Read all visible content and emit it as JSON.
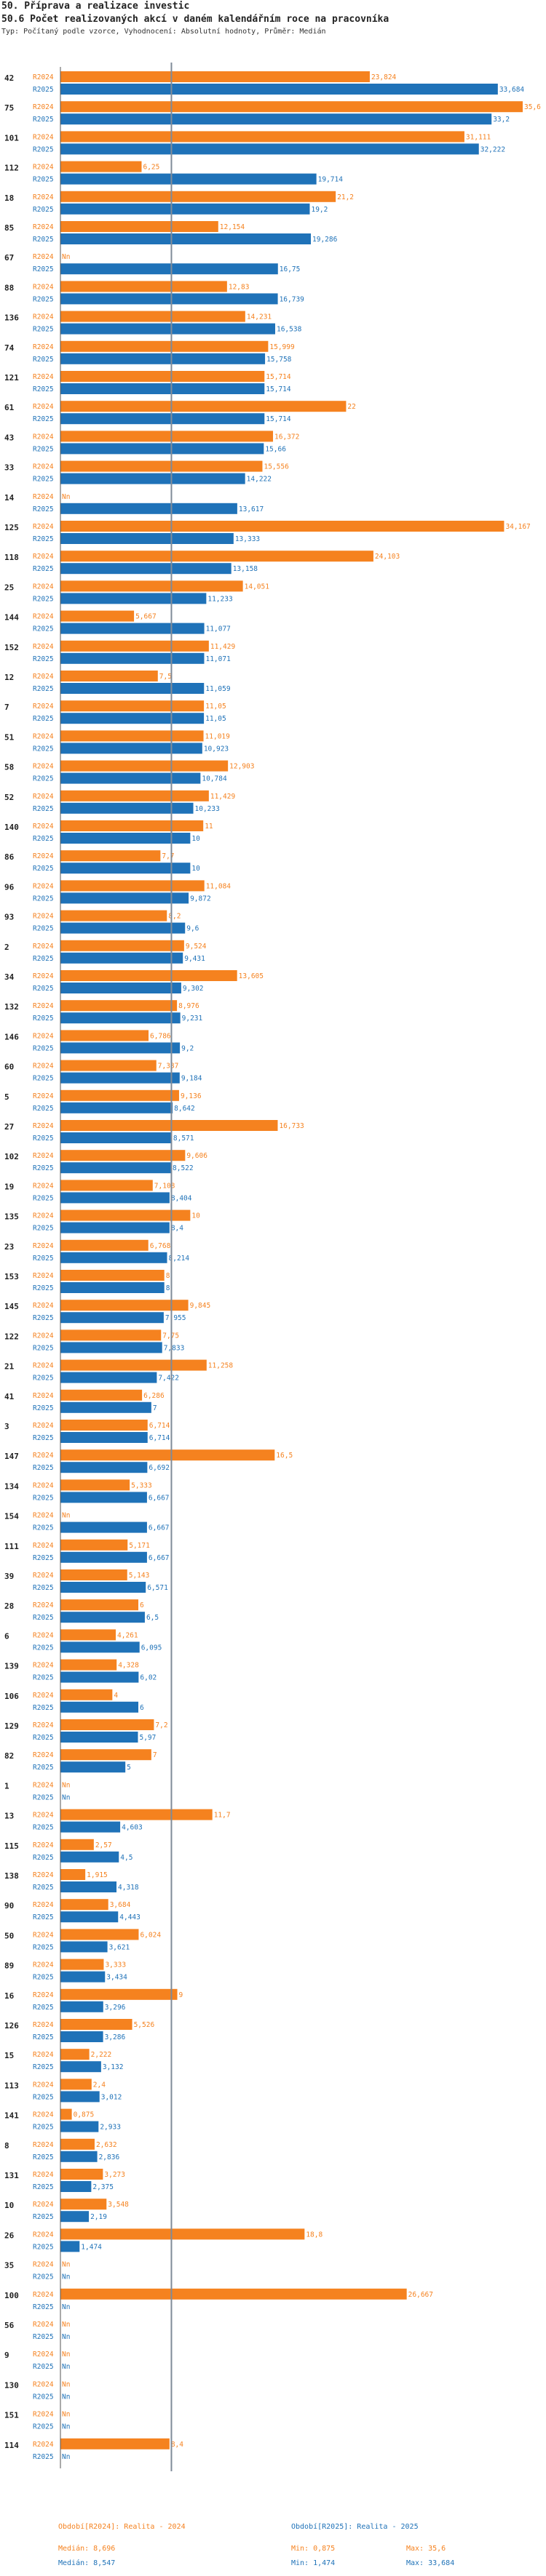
{
  "header": {
    "title": "50. Příprava a realizace investic",
    "subtitle_main": "50.6 Počet realizovaných akcí v daném kalendářním roce na pracovníka",
    "info": "Typ: Počítaný podle vzorce, Vyhodnocení: Absolutní hodnoty, Průměr: Medián"
  },
  "colors": {
    "r2024": "#f5821f",
    "r2025": "#1f72b8",
    "median": "#7f8b99"
  },
  "chart_data": {
    "type": "bar",
    "orientation": "horizontal",
    "series_names": [
      "R2024",
      "R2025"
    ],
    "value_axis_max": 35.6,
    "median_line": 8.547,
    "missing_label": "Nn",
    "groups": [
      {
        "id": "42",
        "r2024": 23.824,
        "r2025": 33.684
      },
      {
        "id": "75",
        "r2024": 35.6,
        "r2025": 33.2
      },
      {
        "id": "101",
        "r2024": 31.111,
        "r2025": 32.222
      },
      {
        "id": "112",
        "r2024": 6.25,
        "r2025": 19.714
      },
      {
        "id": "18",
        "r2024": 21.2,
        "r2025": 19.2
      },
      {
        "id": "85",
        "r2024": 12.154,
        "r2025": 19.286
      },
      {
        "id": "67",
        "r2024": null,
        "r2025": 16.75
      },
      {
        "id": "88",
        "r2024": 12.83,
        "r2025": 16.739
      },
      {
        "id": "136",
        "r2024": 14.231,
        "r2025": 16.538
      },
      {
        "id": "74",
        "r2024": 15.999,
        "r2025": 15.758
      },
      {
        "id": "121",
        "r2024": 15.714,
        "r2025": 15.714
      },
      {
        "id": "61",
        "r2024": 22,
        "r2025": 15.714
      },
      {
        "id": "43",
        "r2024": 16.372,
        "r2025": 15.66
      },
      {
        "id": "33",
        "r2024": 15.556,
        "r2025": 14.222
      },
      {
        "id": "14",
        "r2024": null,
        "r2025": 13.617
      },
      {
        "id": "125",
        "r2024": 34.167,
        "r2025": 13.333
      },
      {
        "id": "118",
        "r2024": 24.103,
        "r2025": 13.158
      },
      {
        "id": "25",
        "r2024": 14.051,
        "r2025": 11.233
      },
      {
        "id": "144",
        "r2024": 5.667,
        "r2025": 11.077
      },
      {
        "id": "152",
        "r2024": 11.429,
        "r2025": 11.071
      },
      {
        "id": "12",
        "r2024": 7.5,
        "r2025": 11.059
      },
      {
        "id": "7",
        "r2024": 11.05,
        "r2025": 11.05
      },
      {
        "id": "51",
        "r2024": 11.019,
        "r2025": 10.923
      },
      {
        "id": "58",
        "r2024": 12.903,
        "r2025": 10.784
      },
      {
        "id": "52",
        "r2024": 11.429,
        "r2025": 10.233
      },
      {
        "id": "140",
        "r2024": 11,
        "r2025": 10
      },
      {
        "id": "86",
        "r2024": 7.7,
        "r2025": 10
      },
      {
        "id": "96",
        "r2024": 11.084,
        "r2025": 9.872
      },
      {
        "id": "93",
        "r2024": 8.2,
        "r2025": 9.6
      },
      {
        "id": "2",
        "r2024": 9.524,
        "r2025": 9.431
      },
      {
        "id": "34",
        "r2024": 13.605,
        "r2025": 9.302
      },
      {
        "id": "132",
        "r2024": 8.976,
        "r2025": 9.231
      },
      {
        "id": "146",
        "r2024": 6.786,
        "r2025": 9.2
      },
      {
        "id": "60",
        "r2024": 7.387,
        "r2025": 9.184
      },
      {
        "id": "5",
        "r2024": 9.136,
        "r2025": 8.642
      },
      {
        "id": "27",
        "r2024": 16.733,
        "r2025": 8.571
      },
      {
        "id": "102",
        "r2024": 9.606,
        "r2025": 8.522
      },
      {
        "id": "19",
        "r2024": 7.108,
        "r2025": 8.404
      },
      {
        "id": "135",
        "r2024": 10,
        "r2025": 8.4
      },
      {
        "id": "23",
        "r2024": 6.768,
        "r2025": 8.214
      },
      {
        "id": "153",
        "r2024": 8,
        "r2025": 8
      },
      {
        "id": "145",
        "r2024": 9.845,
        "r2025": 7.955
      },
      {
        "id": "122",
        "r2024": 7.75,
        "r2025": 7.833
      },
      {
        "id": "21",
        "r2024": 11.258,
        "r2025": 7.422
      },
      {
        "id": "41",
        "r2024": 6.286,
        "r2025": 7
      },
      {
        "id": "3",
        "r2024": 6.714,
        "r2025": 6.714
      },
      {
        "id": "147",
        "r2024": 16.5,
        "r2025": 6.692
      },
      {
        "id": "134",
        "r2024": 5.333,
        "r2025": 6.667
      },
      {
        "id": "154",
        "r2024": null,
        "r2025": 6.667
      },
      {
        "id": "111",
        "r2024": 5.171,
        "r2025": 6.667
      },
      {
        "id": "39",
        "r2024": 5.143,
        "r2025": 6.571
      },
      {
        "id": "28",
        "r2024": 6,
        "r2025": 6.5
      },
      {
        "id": "6",
        "r2024": 4.261,
        "r2025": 6.095
      },
      {
        "id": "139",
        "r2024": 4.328,
        "r2025": 6.02
      },
      {
        "id": "106",
        "r2024": 4,
        "r2025": 6
      },
      {
        "id": "129",
        "r2024": 7.2,
        "r2025": 5.97
      },
      {
        "id": "82",
        "r2024": 7,
        "r2025": 5
      },
      {
        "id": "1",
        "r2024": null,
        "r2025": null
      },
      {
        "id": "13",
        "r2024": 11.7,
        "r2025": 4.603
      },
      {
        "id": "115",
        "r2024": 2.57,
        "r2025": 4.5
      },
      {
        "id": "138",
        "r2024": 1.915,
        "r2025": 4.318
      },
      {
        "id": "90",
        "r2024": 3.684,
        "r2025": 4.443
      },
      {
        "id": "50",
        "r2024": 6.024,
        "r2025": 3.621
      },
      {
        "id": "89",
        "r2024": 3.333,
        "r2025": 3.434
      },
      {
        "id": "16",
        "r2024": 9,
        "r2025": 3.296
      },
      {
        "id": "126",
        "r2024": 5.526,
        "r2025": 3.286
      },
      {
        "id": "15",
        "r2024": 2.222,
        "r2025": 3.132
      },
      {
        "id": "113",
        "r2024": 2.4,
        "r2025": 3.012
      },
      {
        "id": "141",
        "r2024": 0.875,
        "r2025": 2.933
      },
      {
        "id": "8",
        "r2024": 2.632,
        "r2025": 2.836
      },
      {
        "id": "131",
        "r2024": 3.273,
        "r2025": 2.375
      },
      {
        "id": "10",
        "r2024": 3.548,
        "r2025": 2.19
      },
      {
        "id": "26",
        "r2024": 18.8,
        "r2025": 1.474
      },
      {
        "id": "35",
        "r2024": null,
        "r2025": null
      },
      {
        "id": "100",
        "r2024": 26.667,
        "r2025": null
      },
      {
        "id": "56",
        "r2024": null,
        "r2025": null
      },
      {
        "id": "9",
        "r2024": null,
        "r2025": null
      },
      {
        "id": "130",
        "r2024": null,
        "r2025": null
      },
      {
        "id": "151",
        "r2024": null,
        "r2025": null
      },
      {
        "id": "114",
        "r2024": 8.4,
        "r2025": null
      }
    ]
  },
  "footer": {
    "legend_2024": "Období[R2024]: Realita - 2024",
    "legend_2025": "Období[R2025]: Realita - 2025",
    "median_2024": "Medián: 8,696",
    "min_2024": "Min: 0,875",
    "max_2024": "Max: 35,6",
    "median_2025": "Medián: 8,547",
    "min_2025": "Min: 1,474",
    "max_2025": "Max: 33,684"
  }
}
